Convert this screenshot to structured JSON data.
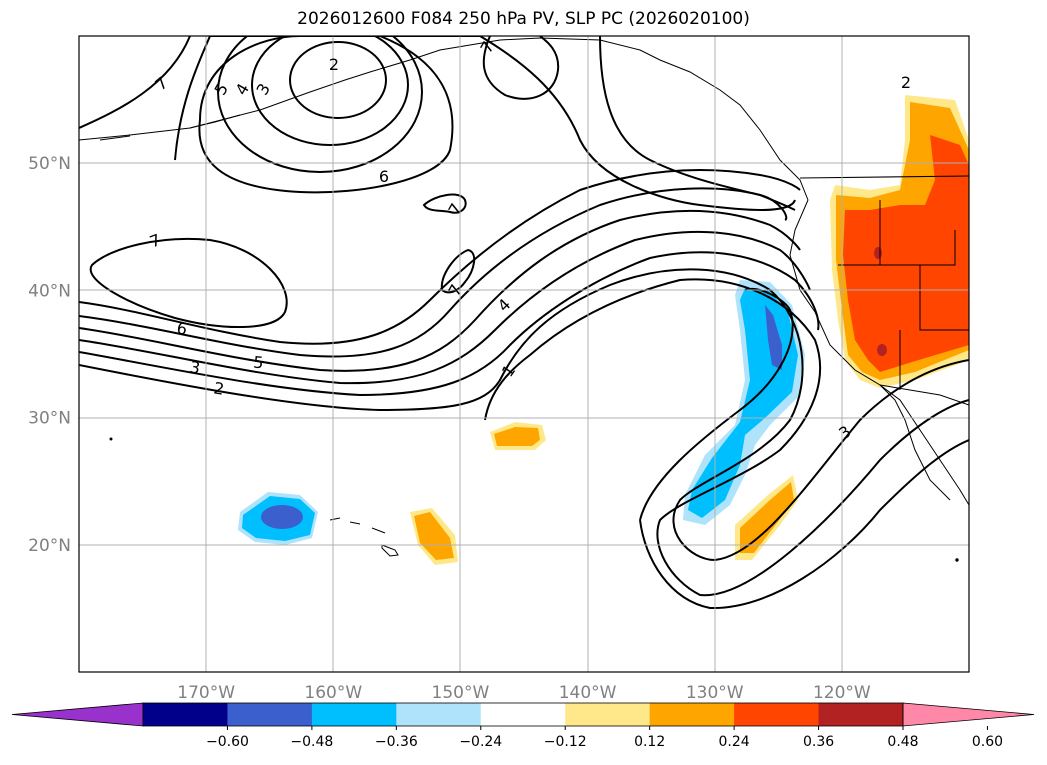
{
  "title": "2026012600 F084 250 hPa PV, SLP PC (2026020100)",
  "map": {
    "lat_ticks": [
      {
        "lat": 50,
        "label": "50°N"
      },
      {
        "lat": 40,
        "label": "40°N"
      },
      {
        "lat": 30,
        "label": "30°N"
      },
      {
        "lat": 20,
        "label": "20°N"
      }
    ],
    "lon_ticks": [
      {
        "lon": -170,
        "label": "170°W"
      },
      {
        "lon": -160,
        "label": "160°W"
      },
      {
        "lon": -150,
        "label": "150°W"
      },
      {
        "lon": -140,
        "label": "140°W"
      },
      {
        "lon": -130,
        "label": "130°W"
      },
      {
        "lon": -120,
        "label": "120°W"
      }
    ],
    "extent": {
      "lon_min": -180,
      "lon_max": -110,
      "lat_min": 10,
      "lat_max": 60
    },
    "contour_labels": [
      "7",
      "5",
      "4",
      "3",
      "2",
      "7",
      "6",
      "7",
      "7",
      "7",
      "6",
      "5",
      "3",
      "2",
      "4",
      "1",
      "2",
      "3"
    ]
  },
  "colorbar": {
    "ticks": [
      "−0.60",
      "−0.48",
      "−0.36",
      "−0.24",
      "−0.12",
      "0.12",
      "0.24",
      "0.36",
      "0.48",
      "0.60"
    ],
    "colors": [
      "#9932cc",
      "#00008b",
      "#3b5fcd",
      "#00bfff",
      "#aee3fb",
      "#ffffff",
      "#ffe88a",
      "#ffa500",
      "#ff4500",
      "#b22222",
      "#ff87a8"
    ]
  }
}
